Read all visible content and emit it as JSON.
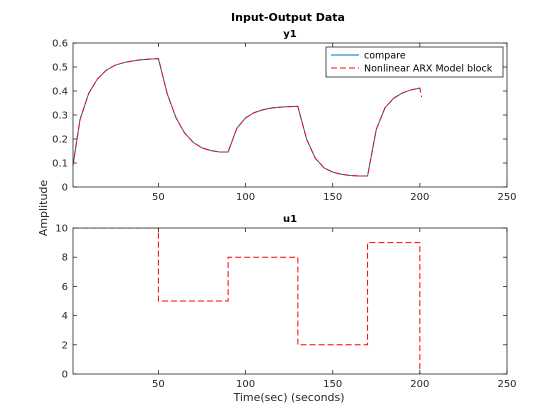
{
  "figure": {
    "title": "Input-Output Data",
    "ylabel": "Amplitude",
    "xlabel": "Time(sec) (seconds)"
  },
  "colors": {
    "compare": "#0072bd",
    "model": "#ff0000",
    "axes": "#262626",
    "background": "#ffffff"
  },
  "chart_data": [
    {
      "type": "line",
      "title": "y1",
      "xlim": [
        1,
        250
      ],
      "ylim": [
        0,
        0.6
      ],
      "xticks": [
        50,
        100,
        150,
        200,
        250
      ],
      "yticks": [
        0,
        0.1,
        0.2,
        0.3,
        0.4,
        0.5,
        0.6
      ],
      "ytick_labels": [
        "0",
        "0.1",
        "0.2",
        "0.3",
        "0.4",
        "0.5",
        "0.6"
      ],
      "grid": false,
      "legend": {
        "location": "top-right",
        "entries": [
          "compare",
          "Nonlinear ARX Model block"
        ]
      },
      "series": [
        {
          "name": "compare",
          "style": "solid",
          "x": [
            1,
            5,
            10,
            15,
            20,
            25,
            30,
            35,
            40,
            45,
            50,
            55,
            60,
            65,
            70,
            75,
            80,
            85,
            90,
            95,
            100,
            105,
            110,
            115,
            120,
            125,
            130,
            135,
            140,
            145,
            150,
            155,
            160,
            165,
            170,
            175,
            180,
            185,
            190,
            195,
            200
          ],
          "y": [
            0.09,
            0.28,
            0.39,
            0.45,
            0.486,
            0.507,
            0.518,
            0.525,
            0.53,
            0.533,
            0.535,
            0.39,
            0.29,
            0.225,
            0.186,
            0.163,
            0.152,
            0.146,
            0.146,
            0.245,
            0.288,
            0.31,
            0.322,
            0.329,
            0.333,
            0.335,
            0.336,
            0.2,
            0.12,
            0.08,
            0.062,
            0.053,
            0.048,
            0.046,
            0.046,
            0.24,
            0.33,
            0.37,
            0.392,
            0.405,
            0.412
          ]
        },
        {
          "name": "Nonlinear ARX Model block",
          "style": "dashed",
          "x": [
            1,
            5,
            10,
            15,
            20,
            25,
            30,
            35,
            40,
            45,
            50,
            55,
            60,
            65,
            70,
            75,
            80,
            85,
            90,
            95,
            100,
            105,
            110,
            115,
            120,
            125,
            130,
            135,
            140,
            145,
            150,
            155,
            160,
            165,
            170,
            175,
            180,
            185,
            190,
            195,
            200,
            201
          ],
          "y": [
            0.09,
            0.28,
            0.39,
            0.45,
            0.486,
            0.507,
            0.518,
            0.525,
            0.53,
            0.533,
            0.535,
            0.39,
            0.29,
            0.225,
            0.186,
            0.163,
            0.152,
            0.146,
            0.146,
            0.245,
            0.288,
            0.31,
            0.322,
            0.329,
            0.333,
            0.335,
            0.336,
            0.2,
            0.12,
            0.08,
            0.062,
            0.053,
            0.048,
            0.046,
            0.046,
            0.24,
            0.33,
            0.37,
            0.392,
            0.405,
            0.412,
            0.375
          ]
        }
      ]
    },
    {
      "type": "line",
      "title": "u1",
      "xlim": [
        1,
        250
      ],
      "ylim": [
        0,
        10
      ],
      "xticks": [
        50,
        100,
        150,
        200,
        250
      ],
      "yticks": [
        0,
        2,
        4,
        6,
        8,
        10
      ],
      "ytick_labels": [
        "0",
        "2",
        "4",
        "6",
        "8",
        "10"
      ],
      "grid": false,
      "series": [
        {
          "name": "Nonlinear ARX Model block",
          "style": "dashed",
          "x": [
            1,
            50,
            50,
            90,
            90,
            130,
            130,
            170,
            170,
            200,
            200
          ],
          "y": [
            10,
            10,
            5,
            5,
            8,
            8,
            2,
            2,
            9,
            9,
            0
          ]
        }
      ]
    }
  ]
}
